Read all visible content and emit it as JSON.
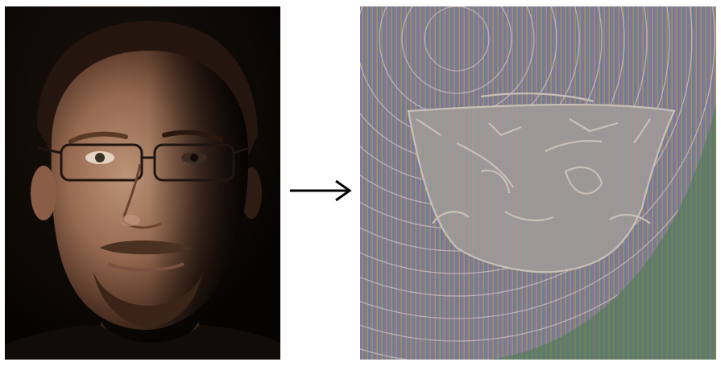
{
  "scene": {
    "left_panel": {
      "subject": "portrait-photo",
      "colors": {
        "background": "#0c0806",
        "skin_lit": "#b98c6e",
        "skin_shadow": "#3a2418",
        "hair": "#2a1a10",
        "shirt": "#100c0a"
      }
    },
    "arrow": {
      "icon": "right-arrow-icon",
      "color": "#000000"
    },
    "right_panel": {
      "subject": "glitch-line-art",
      "colors": {
        "base": "#4a7a4c",
        "stripe_a": "#9a6ab0",
        "stripe_b": "#5e8a6a",
        "stripe_c": "#c09060",
        "stripe_d": "#6a7ab8",
        "outline": "#c8c0b8"
      }
    }
  }
}
